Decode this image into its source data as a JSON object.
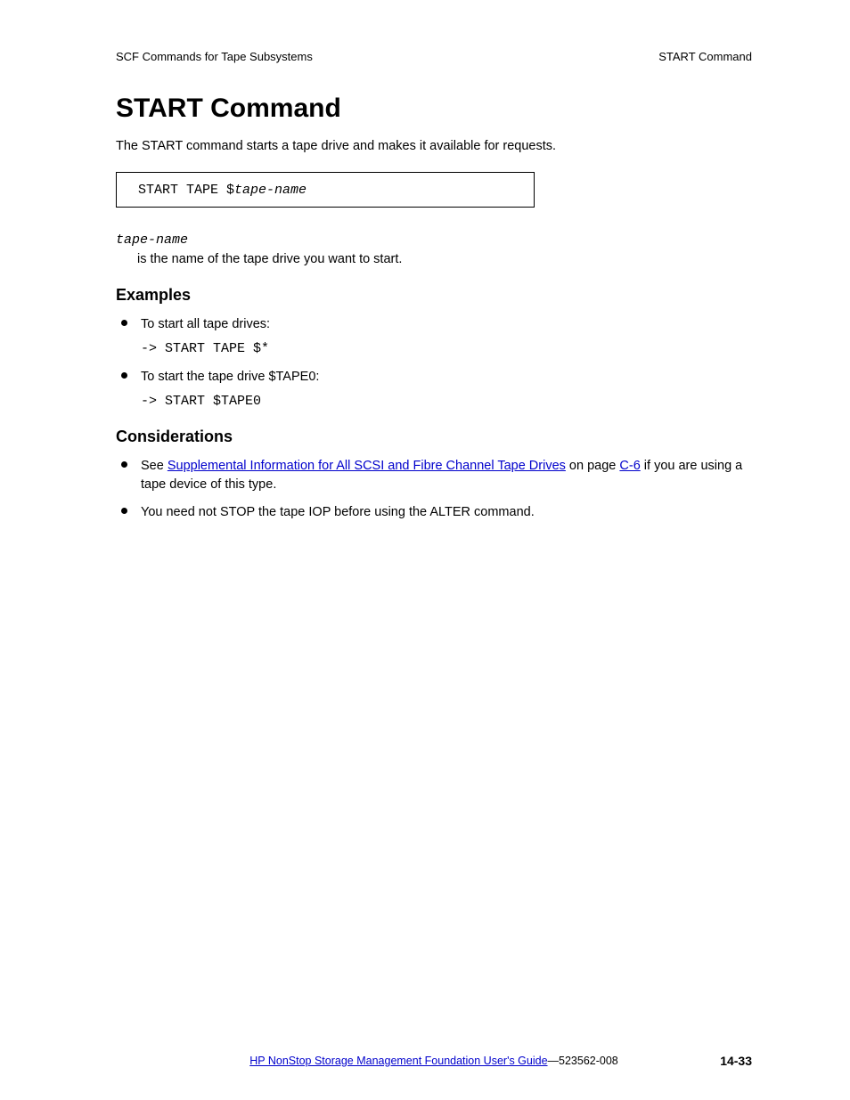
{
  "header": {
    "left": "SCF Commands for Tape Subsystems",
    "right": "START Command"
  },
  "title": "START Command",
  "intro": "The START command starts a tape drive and makes it available for requests.",
  "code_box": {
    "prefix": "START TAPE $",
    "italic": "tape-name"
  },
  "param": {
    "name": "tape-name",
    "desc": "is the name of the tape drive you want to start."
  },
  "examples": {
    "heading": "Examples",
    "items": [
      {
        "text": "To start all tape drives:",
        "code": "-> START TAPE $*"
      },
      {
        "text": "To start the tape drive $TAPE0:",
        "code": "-> START $TAPE0"
      }
    ]
  },
  "considerations": {
    "heading": "Considerations",
    "items": [
      {
        "pre": "See ",
        "link": "Supplemental Information for All SCSI and Fibre Channel Tape Drives",
        "post1": " on page ",
        "page_link": "C-6",
        "post2": " if you are using a tape device of this type."
      },
      {
        "plain": "You need not STOP the tape IOP before using the ALTER command."
      }
    ]
  },
  "link_color": "#0000cc",
  "footer": {
    "left_link": "HP NonStop Storage Management Foundation User's Guide",
    "left_suffix": "—",
    "left_code": "523562-008",
    "page": "14-33"
  }
}
